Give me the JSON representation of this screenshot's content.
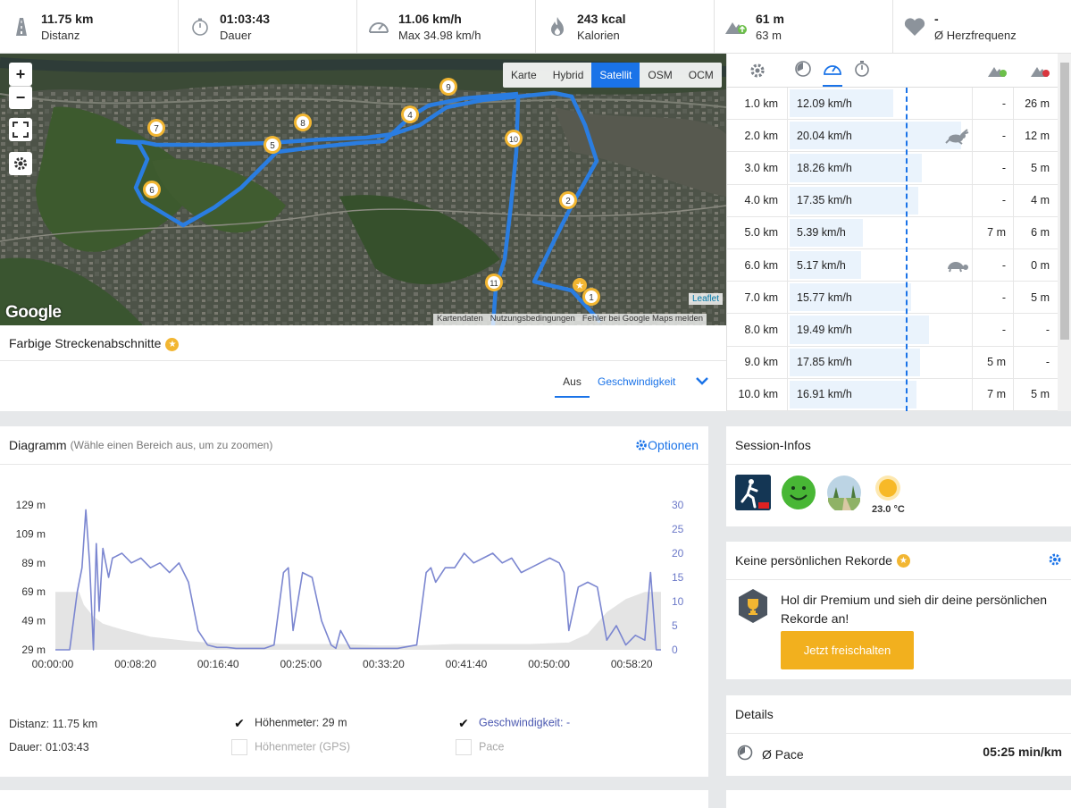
{
  "stats": [
    {
      "value": "11.75 km",
      "label": "Distanz",
      "icon": "road-icon"
    },
    {
      "value": "01:03:43",
      "label": "Dauer",
      "icon": "stopwatch-icon"
    },
    {
      "value": "11.06 km/h",
      "label": "Max 34.98 km/h",
      "icon": "speedometer-icon"
    },
    {
      "value": "243 kcal",
      "label": "Kalorien",
      "icon": "flame-icon"
    },
    {
      "value": "61 m",
      "label": "63 m",
      "icon": "elevation-icon"
    },
    {
      "value": "-",
      "label": "Ø Herzfrequenz",
      "icon": "heart-icon"
    }
  ],
  "map": {
    "zoom_in": "+",
    "zoom_out": "−",
    "types": [
      "Karte",
      "Hybrid",
      "Satellit",
      "OSM",
      "OCM"
    ],
    "active_type": "Satellit",
    "google": "Google",
    "leaflet": "Leaflet",
    "attribution": [
      "Kartendaten",
      "Nutzungsbedingungen",
      "Fehler bei Google Maps melden"
    ],
    "markers": [
      "1",
      "2",
      "4",
      "5",
      "6",
      "7",
      "8",
      "9",
      "10",
      "11"
    ]
  },
  "segments": {
    "title": "Farbige Streckenabschnitte",
    "tab_off": "Aus",
    "tab_speed": "Geschwindigkeit"
  },
  "splits": {
    "rows": [
      {
        "km": "1.0 km",
        "speed": "12.09 km/h",
        "frac": 0.58,
        "up": "-",
        "down": "26 m",
        "badge": ""
      },
      {
        "km": "2.0 km",
        "speed": "20.04 km/h",
        "frac": 0.96,
        "up": "-",
        "down": "12 m",
        "badge": "rabbit"
      },
      {
        "km": "3.0 km",
        "speed": "18.26 km/h",
        "frac": 0.74,
        "up": "-",
        "down": "5 m",
        "badge": ""
      },
      {
        "km": "4.0 km",
        "speed": "17.35 km/h",
        "frac": 0.72,
        "up": "-",
        "down": "4 m",
        "badge": ""
      },
      {
        "km": "5.0 km",
        "speed": "5.39 km/h",
        "frac": 0.41,
        "up": "7 m",
        "down": "6 m",
        "badge": ""
      },
      {
        "km": "6.0 km",
        "speed": "5.17 km/h",
        "frac": 0.4,
        "up": "-",
        "down": "0 m",
        "badge": "turtle"
      },
      {
        "km": "7.0 km",
        "speed": "15.77 km/h",
        "frac": 0.68,
        "up": "-",
        "down": "5 m",
        "badge": ""
      },
      {
        "km": "8.0 km",
        "speed": "19.49 km/h",
        "frac": 0.78,
        "up": "-",
        "down": "-",
        "badge": ""
      },
      {
        "km": "9.0 km",
        "speed": "17.85 km/h",
        "frac": 0.73,
        "up": "5 m",
        "down": "-",
        "badge": ""
      },
      {
        "km": "10.0 km",
        "speed": "16.91 km/h",
        "frac": 0.71,
        "up": "7 m",
        "down": "5 m",
        "badge": ""
      }
    ]
  },
  "diagram": {
    "title": "Diagramm",
    "hint": "(Wähle einen Bereich aus, um zu zoomen)",
    "options": "Optionen",
    "distance": "Distanz: 11.75 km",
    "duration": "Dauer: 01:03:43",
    "leg_elev": "Höhenmeter: 29 m",
    "leg_elev_gps": "Höhenmeter (GPS)",
    "leg_speed": "Geschwindigkeit: -",
    "leg_pace": "Pace"
  },
  "chart_data": {
    "type": "line",
    "x_ticks": [
      "00:00:00",
      "00:08:20",
      "00:16:40",
      "00:25:00",
      "00:33:20",
      "00:41:40",
      "00:50:00",
      "00:58:20"
    ],
    "y_left_ticks": [
      "129 m",
      "109 m",
      "89 m",
      "69 m",
      "49 m",
      "29 m"
    ],
    "y_right_ticks": [
      "30",
      "25",
      "20",
      "15",
      "10",
      "5",
      "0"
    ],
    "ylim_left": [
      29,
      129
    ],
    "ylim_right": [
      0,
      30
    ],
    "xlim_minutes": [
      0,
      63.7
    ],
    "series": [
      {
        "name": "Höhenmeter",
        "axis": "left",
        "style": "area",
        "color": "#e4e4e4",
        "x": [
          0,
          2.5,
          3,
          4,
          5,
          7,
          10,
          14,
          18,
          22,
          26,
          30,
          34,
          38,
          42,
          46,
          50,
          54,
          56,
          58,
          60,
          62,
          63.7
        ],
        "y": [
          69,
          69,
          60,
          52,
          47,
          43,
          38,
          35,
          33,
          33,
          33,
          33,
          32,
          32,
          33,
          33,
          33,
          34,
          40,
          55,
          64,
          69,
          69
        ]
      },
      {
        "name": "Geschwindigkeit",
        "axis": "right",
        "style": "line",
        "color": "#7b86d0",
        "x": [
          0,
          1.5,
          2.3,
          2.8,
          3.2,
          3.6,
          4,
          4.3,
          4.6,
          5,
          5.6,
          6,
          7,
          8,
          9,
          10,
          11,
          12,
          13,
          14,
          15,
          16,
          17,
          18,
          19,
          20,
          21,
          22,
          23,
          24,
          24.5,
          25,
          26,
          27,
          28,
          29,
          29.5,
          30,
          31,
          32,
          34,
          36,
          38,
          39,
          39.5,
          40,
          41,
          42,
          43,
          44,
          45,
          46,
          47,
          48,
          49,
          50,
          51,
          52,
          53,
          53.5,
          54,
          55,
          56,
          57,
          58,
          59,
          60,
          61,
          62,
          62.6,
          63.2,
          63.7
        ],
        "y": [
          0,
          0,
          12,
          17,
          29,
          18,
          0,
          22,
          8,
          21,
          15,
          19,
          20,
          18,
          19,
          17,
          18,
          16,
          18,
          14,
          4,
          1,
          0.5,
          0.5,
          0.3,
          0.3,
          0.3,
          0.3,
          1,
          16,
          17,
          4,
          16,
          15,
          6,
          1,
          0.3,
          4,
          0.3,
          0.3,
          0.3,
          0.3,
          1,
          16,
          17,
          14,
          17,
          17,
          20,
          18,
          19,
          20,
          18,
          19,
          16,
          17,
          18,
          19,
          18,
          16,
          4,
          13,
          14,
          13,
          2,
          5,
          1,
          3,
          2,
          16,
          0,
          0
        ]
      }
    ]
  },
  "session": {
    "title": "Session-Infos",
    "temperature": "23.0 °C"
  },
  "records": {
    "title": "Keine persönlichen Rekorde",
    "text": "Hol dir Premium und sieh dir deine persönlichen Rekorde an!",
    "button": "Jetzt freischalten"
  },
  "details": {
    "title": "Details",
    "pace_label": "Ø Pace",
    "pace_value": "05:25 min/km"
  }
}
